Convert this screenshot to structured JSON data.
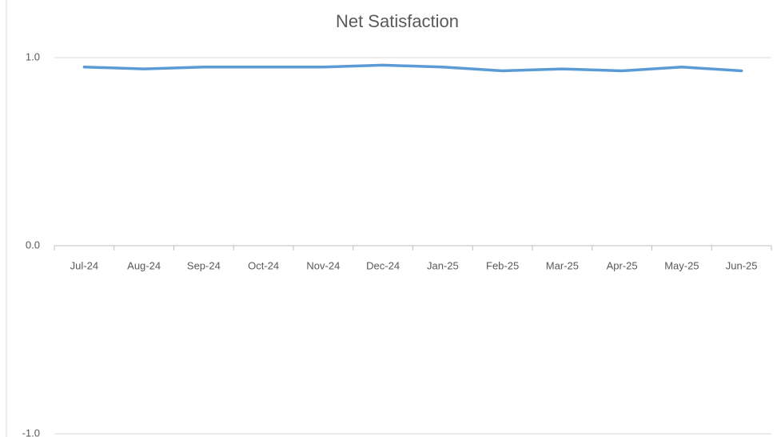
{
  "chart_data": {
    "type": "line",
    "title": "Net Satisfaction",
    "categories": [
      "Jul-24",
      "Aug-24",
      "Sep-24",
      "Oct-24",
      "Nov-24",
      "Dec-24",
      "Jan-25",
      "Feb-25",
      "Mar-25",
      "Apr-25",
      "May-25",
      "Jun-25"
    ],
    "series": [
      {
        "name": "Net Satisfaction",
        "color": "#5b9bd5",
        "values": [
          0.95,
          0.94,
          0.95,
          0.95,
          0.95,
          0.96,
          0.95,
          0.93,
          0.94,
          0.93,
          0.95,
          0.93
        ]
      }
    ],
    "ylim": [
      -1,
      1
    ],
    "yticks": [
      {
        "value": -1,
        "label": "-1.0"
      },
      {
        "value": 0,
        "label": "0.0"
      },
      {
        "value": 1,
        "label": "1.0"
      }
    ],
    "grid": true
  }
}
